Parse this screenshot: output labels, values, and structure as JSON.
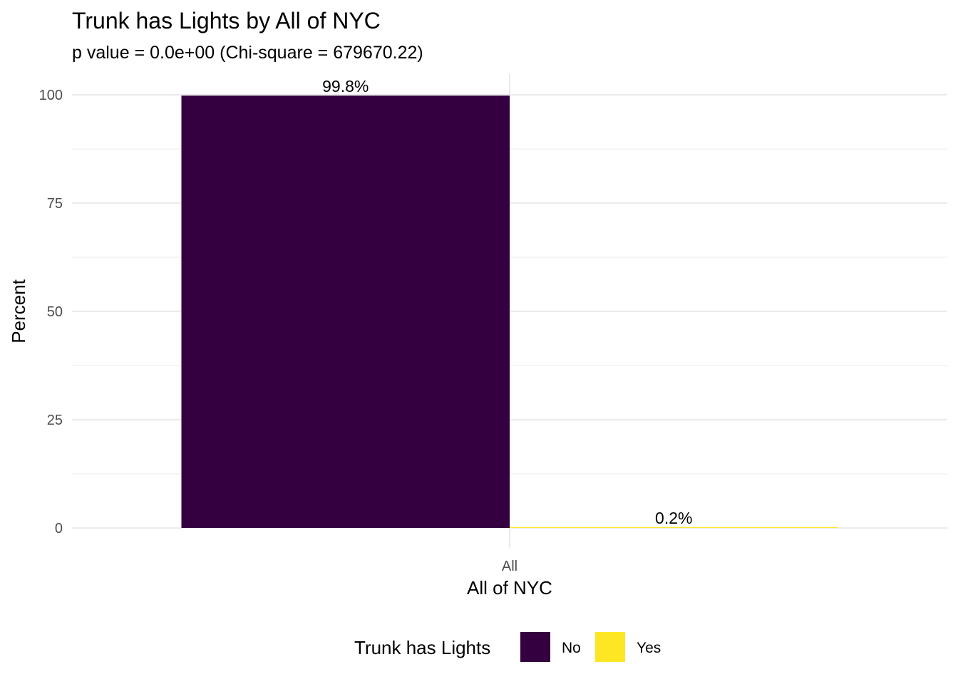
{
  "chart_data": {
    "type": "bar",
    "title": "Trunk has Lights by All of NYC",
    "subtitle": "p value = 0.0e+00 (Chi-square = 679670.22)",
    "xlabel": "All of NYC",
    "ylabel": "Percent",
    "categories": [
      "All"
    ],
    "series": [
      {
        "name": "No",
        "values": [
          99.8
        ],
        "labels": [
          "99.8%"
        ],
        "color": "#35003f"
      },
      {
        "name": "Yes",
        "values": [
          0.2
        ],
        "labels": [
          "0.2%"
        ],
        "color": "#fde725"
      }
    ],
    "ylim": [
      0,
      100
    ],
    "yticks": [
      0,
      25,
      50,
      75,
      100
    ],
    "grid": true,
    "legend": {
      "title": "Trunk has Lights",
      "position": "bottom",
      "items": [
        {
          "label": "No",
          "color": "#35003f"
        },
        {
          "label": "Yes",
          "color": "#fde725"
        }
      ]
    }
  }
}
